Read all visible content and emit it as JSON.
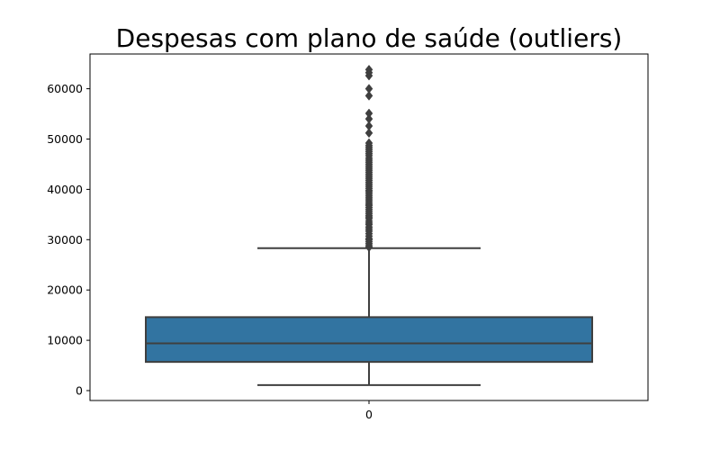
{
  "chart_data": {
    "type": "boxplot",
    "title": "Despesas com plano de saúde (outliers)",
    "xlabel": "",
    "ylabel": "",
    "categories": [
      "0"
    ],
    "ylim": [
      -2500,
      66000
    ],
    "yticks": [
      0,
      10000,
      20000,
      30000,
      40000,
      50000,
      60000
    ],
    "ytick_labels": [
      "0",
      "10000",
      "20000",
      "30000",
      "40000",
      "50000",
      "60000"
    ],
    "grid": false,
    "box": {
      "min": 1100,
      "q1": 5700,
      "median": 9400,
      "q3": 14600,
      "whisker_high": 28300
    },
    "outliers": [
      28500,
      28800,
      29200,
      29600,
      30000,
      30200,
      30700,
      31200,
      31700,
      32100,
      32500,
      33000,
      33300,
      33700,
      34200,
      34500,
      34800,
      35200,
      35600,
      36000,
      36400,
      36800,
      37100,
      37500,
      37900,
      38300,
      38700,
      39100,
      39500,
      39800,
      40200,
      40600,
      41000,
      41400,
      41800,
      42200,
      42600,
      43000,
      43400,
      43800,
      44200,
      44600,
      45000,
      45400,
      45800,
      46200,
      46700,
      47100,
      47500,
      47900,
      48300,
      48700,
      49200,
      51200,
      52600,
      54000,
      55100,
      58600,
      60000,
      62600,
      63200,
      63800
    ],
    "colors": {
      "box": "#3274a1",
      "line": "#3f3f3f",
      "axis": "#000000"
    }
  }
}
